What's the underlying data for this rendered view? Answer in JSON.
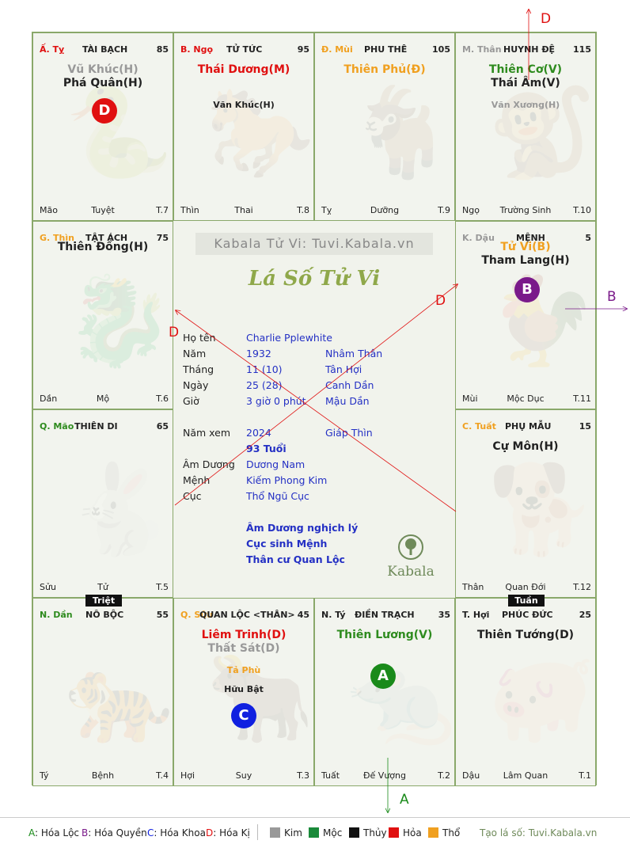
{
  "palaces": [
    {
      "id": "ty",
      "branch": "Ấ. Tỵ",
      "branch_color": "#e01010",
      "palace": "TÀI BẠCH",
      "number": "85",
      "animal": "🐍",
      "stars": [
        {
          "text": "Vũ Khúc(H)",
          "color": "#999",
          "size": "s1",
          "top": 38
        },
        {
          "text": "Phá Quân(H)",
          "color": "#222",
          "size": "s1",
          "top": 55
        }
      ],
      "foot": [
        "Mão",
        "Tuyệt",
        "T.7"
      ]
    },
    {
      "id": "ngo",
      "branch": "B. Ngọ",
      "branch_color": "#e01010",
      "palace": "TỬ TỨC",
      "number": "95",
      "animal": "🐎",
      "stars": [
        {
          "text": "Thái Dương(M)",
          "color": "#e01010",
          "size": "s1",
          "top": 38
        },
        {
          "text": "Văn Khúc(H)",
          "color": "#222",
          "size": "s3",
          "top": 84
        }
      ],
      "foot": [
        "Thìn",
        "Thai",
        "T.8"
      ]
    },
    {
      "id": "mui",
      "branch": "Đ. Mùi",
      "branch_color": "#f0a020",
      "palace": "PHU THÊ",
      "number": "105",
      "animal": "🐐",
      "stars": [
        {
          "text": "Thiên Phủ(Đ)",
          "color": "#f0a020",
          "size": "s1",
          "top": 38
        }
      ],
      "foot": [
        "Tỵ",
        "Dưỡng",
        "T.9"
      ]
    },
    {
      "id": "than",
      "branch": "M. Thân",
      "branch_color": "#999",
      "palace": "HUYNH ĐỆ",
      "number": "115",
      "animal": "🐒",
      "stars": [
        {
          "text": "Thiên Cơ(V)",
          "color": "#2e8b1e",
          "size": "s1",
          "top": 38
        },
        {
          "text": "Thái Âm(V)",
          "color": "#222",
          "size": "s1",
          "top": 55
        },
        {
          "text": "Văn Xương(H)",
          "color": "#999",
          "size": "s3",
          "top": 84
        }
      ],
      "foot": [
        "Ngọ",
        "Trường Sinh",
        "T.10"
      ]
    },
    {
      "id": "thin",
      "branch": "G. Thìn",
      "branch_color": "#f0a020",
      "palace": "TẬT ÁCH",
      "number": "75",
      "animal": "🐉",
      "stars": [
        {
          "text": "Thiên Đồng(H)",
          "color": "#222",
          "size": "s1",
          "top": 24
        }
      ],
      "foot": [
        "Dần",
        "Mộ",
        "T.6"
      ]
    },
    {
      "id": "dau",
      "branch": "K. Dậu",
      "branch_color": "#999",
      "palace": "MỆNH",
      "number": "5",
      "animal": "🐓",
      "stars": [
        {
          "text": "Tử Vi(B)",
          "color": "#f0a020",
          "size": "s1",
          "top": 24
        },
        {
          "text": "Tham Lang(H)",
          "color": "#222",
          "size": "s1",
          "top": 41
        }
      ],
      "foot": [
        "Mùi",
        "Mộc Dục",
        "T.11"
      ]
    },
    {
      "id": "mao",
      "branch": "Q. Mão",
      "branch_color": "#2e8b1e",
      "palace": "THIÊN DI",
      "number": "65",
      "animal": "🐇",
      "stars": [],
      "foot": [
        "Sửu",
        "Tử",
        "T.5"
      ]
    },
    {
      "id": "tuat",
      "branch": "C. Tuất",
      "branch_color": "#f0a020",
      "palace": "PHỤ MẪU",
      "number": "15",
      "animal": "🐕",
      "stars": [
        {
          "text": "Cự Môn(H)",
          "color": "#222",
          "size": "s1",
          "top": 38
        }
      ],
      "foot": [
        "Thân",
        "Quan Đới",
        "T.12"
      ]
    },
    {
      "id": "dan",
      "branch": "N. Dần",
      "branch_color": "#2e8b1e",
      "palace": "NÔ BỘC",
      "number": "55",
      "animal": "🐅",
      "stars": [],
      "foot": [
        "Tý",
        "Bệnh",
        "T.4"
      ]
    },
    {
      "id": "suu",
      "branch": "Q. Sửu",
      "branch_color": "#f0a020",
      "palace": "QUAN LỘC <THÂN>",
      "number": "45",
      "animal": "🐂",
      "stars": [
        {
          "text": "Liêm Trinh(D)",
          "color": "#e01010",
          "size": "s1",
          "top": 38
        },
        {
          "text": "Thất Sát(D)",
          "color": "#999",
          "size": "s1",
          "top": 55
        },
        {
          "text": "Tả Phù",
          "color": "#f0a020",
          "size": "s3",
          "top": 84
        },
        {
          "text": "Hữu Bật",
          "color": "#222",
          "size": "s3",
          "top": 108
        }
      ],
      "foot": [
        "Hợi",
        "Suy",
        "T.3"
      ]
    },
    {
      "id": "ty2",
      "branch": "N. Tý",
      "branch_color": "#222",
      "palace": "ĐIỀN TRẠCH",
      "number": "35",
      "animal": "🐀",
      "stars": [
        {
          "text": "Thiên Lương(V)",
          "color": "#2e8b1e",
          "size": "s1",
          "top": 38
        }
      ],
      "foot": [
        "Tuất",
        "Đế Vượng",
        "T.2"
      ]
    },
    {
      "id": "hoi",
      "branch": "T. Hợi",
      "branch_color": "#222",
      "palace": "PHÚC ĐỨC",
      "number": "25",
      "animal": "🐖",
      "stars": [
        {
          "text": "Thiên Tướng(D)",
          "color": "#222",
          "size": "s1",
          "top": 38
        }
      ],
      "foot": [
        "Dậu",
        "Lâm Quan",
        "T.1"
      ]
    }
  ],
  "badges": {
    "ty": {
      "letter": "D",
      "color": "#e01010"
    },
    "dau": {
      "letter": "B",
      "color": "#7a1a8a"
    },
    "suu": {
      "letter": "C",
      "color": "#1020e0"
    },
    "ty2": {
      "letter": "A",
      "color": "#1a8a1a"
    }
  },
  "tags": {
    "triet": "Triệt",
    "tuan": "Tuần"
  },
  "center": {
    "watermark": "Kabala Tử Vi: Tuvi.Kabala.vn",
    "title": "Lá Số Tử Vi",
    "rows": [
      {
        "label": "Họ tên",
        "v1": "Charlie Pplewhite",
        "v2": ""
      },
      {
        "label": "Năm",
        "v1": "1932",
        "v2": "Nhâm Thân"
      },
      {
        "label": "Tháng",
        "v1": "11  (10)",
        "v2": "Tân Hợi"
      },
      {
        "label": "Ngày",
        "v1": "25  (28)",
        "v2": "Canh Dần"
      },
      {
        "label": "Giờ",
        "v1": "3 giờ 0 phút",
        "v2": "Mậu Dần"
      },
      {
        "label": "Năm xem",
        "v1": "2024",
        "v2": "Giáp Thìn"
      }
    ],
    "age": "93 Tuổi",
    "rows2": [
      {
        "label": "Âm Dương",
        "v1": "Dương Nam"
      },
      {
        "label": "Mệnh",
        "v1": "Kiếm Phong Kim"
      },
      {
        "label": "Cục",
        "v1": "Thổ Ngũ Cục"
      }
    ],
    "notes": [
      "Âm Dương nghịch lý",
      "Cục sinh Mệnh",
      "Thân cư Quan Lộc"
    ],
    "logo_text": "Kabala"
  },
  "arrow_labels": {
    "top": "D",
    "right": "B",
    "bottom": "A",
    "left_d": "D",
    "right_d": "D"
  },
  "legend": {
    "items": [
      {
        "key": "A",
        "text": ": Hóa Lộc",
        "color": "#1a8a1a"
      },
      {
        "key": "B",
        "text": ": Hóa Quyền",
        "color": "#7a1a8a"
      },
      {
        "key": "C",
        "text": ": Hóa Khoa",
        "color": "#1020e0"
      },
      {
        "key": "D",
        "text": ": Hóa Kị",
        "color": "#e01010"
      }
    ],
    "elements": [
      {
        "name": "Kim",
        "color": "#999999"
      },
      {
        "name": "Mộc",
        "color": "#1a8a3a"
      },
      {
        "name": "Thủy",
        "color": "#111111"
      },
      {
        "name": "Hỏa",
        "color": "#e01010"
      },
      {
        "name": "Thổ",
        "color": "#f0a020"
      }
    ],
    "site": "Tạo lá số: Tuvi.Kabala.vn"
  }
}
